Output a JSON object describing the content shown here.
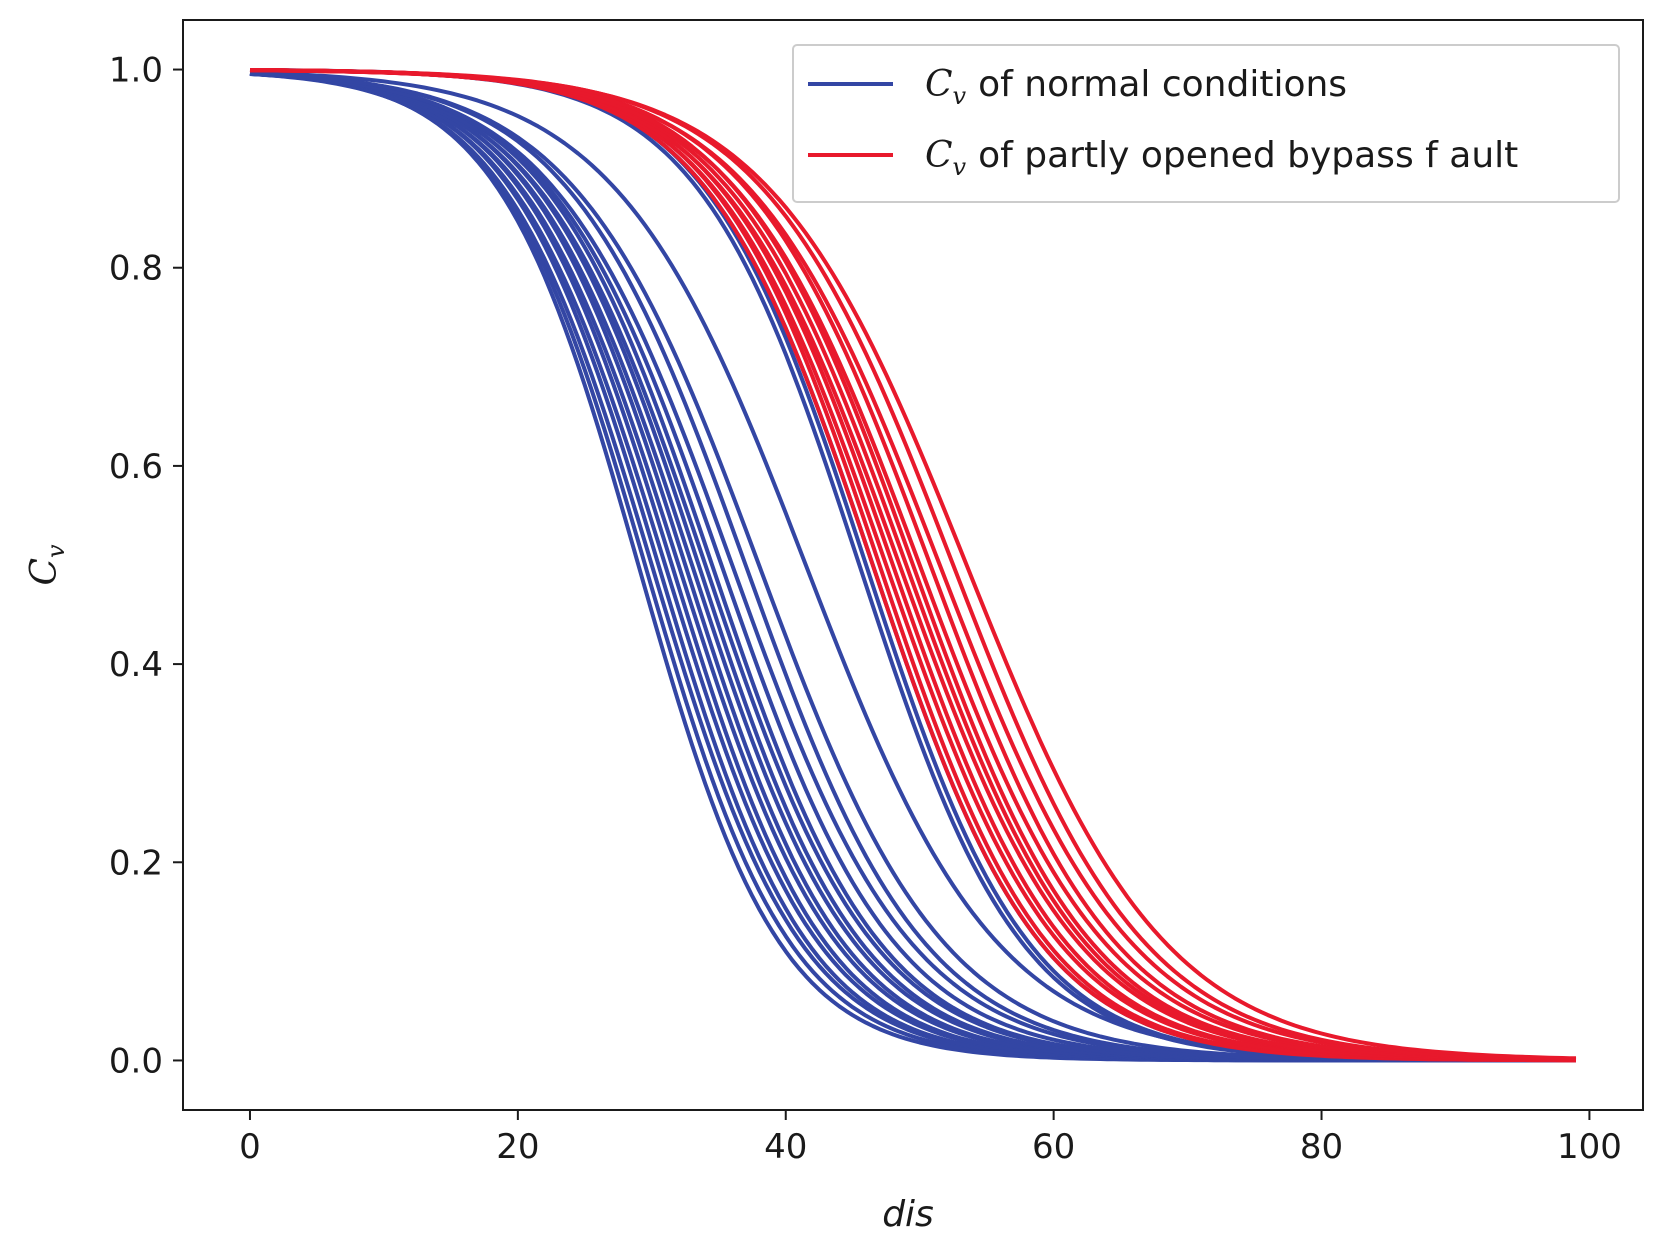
{
  "chart_data": {
    "type": "line",
    "title": "",
    "xlabel": "dis",
    "ylabel_symbol": "C",
    "ylabel_subscript": "v",
    "xlim": [
      -5,
      104
    ],
    "ylim": [
      -0.05,
      1.05
    ],
    "xticks": [
      0,
      20,
      40,
      60,
      80,
      100
    ],
    "yticks": [
      0.0,
      0.2,
      0.4,
      0.6,
      0.8,
      1.0
    ],
    "xtick_labels": [
      "0",
      "20",
      "40",
      "60",
      "80",
      "100"
    ],
    "ytick_labels": [
      "0.0",
      "0.2",
      "0.4",
      "0.6",
      "0.8",
      "1.0"
    ],
    "grid": false,
    "legend_position": "top-right",
    "x_start": 0,
    "x_end": 99,
    "series": [
      {
        "name": "normal",
        "legend_symbol": "C",
        "legend_subscript": "v",
        "legend_text": "of normal conditions",
        "color": "#3346a4",
        "description": "Sigmoid curves C_v falling from 1.0 to 0.0; half-point dis values (k = steepness)",
        "curves": [
          {
            "mid": 29.0,
            "k": 0.19
          },
          {
            "mid": 29.5,
            "k": 0.185
          },
          {
            "mid": 30.0,
            "k": 0.18
          },
          {
            "mid": 30.5,
            "k": 0.18
          },
          {
            "mid": 31.0,
            "k": 0.175
          },
          {
            "mid": 31.5,
            "k": 0.175
          },
          {
            "mid": 32.0,
            "k": 0.17
          },
          {
            "mid": 32.5,
            "k": 0.17
          },
          {
            "mid": 33.0,
            "k": 0.165
          },
          {
            "mid": 33.5,
            "k": 0.165
          },
          {
            "mid": 34.0,
            "k": 0.16
          },
          {
            "mid": 34.5,
            "k": 0.16
          },
          {
            "mid": 35.2,
            "k": 0.155
          },
          {
            "mid": 36.0,
            "k": 0.15
          },
          {
            "mid": 37.0,
            "k": 0.15
          },
          {
            "mid": 38.0,
            "k": 0.145
          },
          {
            "mid": 41.5,
            "k": 0.14
          },
          {
            "mid": 45.5,
            "k": 0.165
          },
          {
            "mid": 46.0,
            "k": 0.165
          },
          {
            "mid": 46.5,
            "k": 0.16
          }
        ]
      },
      {
        "name": "fault",
        "legend_symbol": "C",
        "legend_subscript": "v",
        "legend_text": "of partly opened bypass f ault",
        "color": "#e8192c",
        "description": "Sigmoid curves C_v falling from 1.0 to 0.0; half-point dis values (k = steepness)",
        "curves": [
          {
            "mid": 46.5,
            "k": 0.16
          },
          {
            "mid": 47.0,
            "k": 0.16
          },
          {
            "mid": 47.5,
            "k": 0.155
          },
          {
            "mid": 48.0,
            "k": 0.155
          },
          {
            "mid": 48.5,
            "k": 0.15
          },
          {
            "mid": 49.0,
            "k": 0.15
          },
          {
            "mid": 49.5,
            "k": 0.15
          },
          {
            "mid": 50.0,
            "k": 0.145
          },
          {
            "mid": 50.8,
            "k": 0.145
          },
          {
            "mid": 51.5,
            "k": 0.14
          },
          {
            "mid": 52.5,
            "k": 0.14
          },
          {
            "mid": 53.5,
            "k": 0.135
          }
        ]
      }
    ]
  }
}
